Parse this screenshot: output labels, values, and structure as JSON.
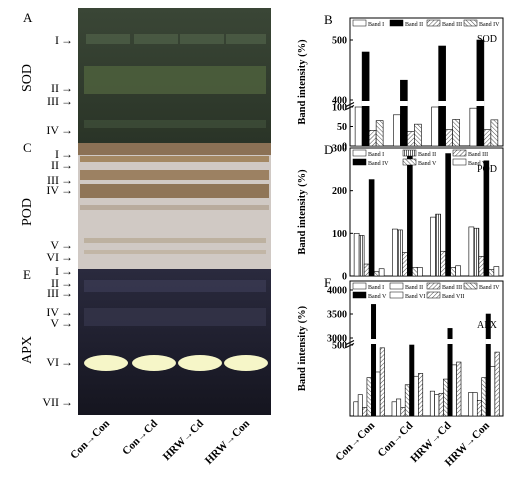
{
  "panels": {
    "A": {
      "letter": "A",
      "stain": "SOD",
      "bands": [
        "I",
        "II",
        "III",
        "IV"
      ]
    },
    "C": {
      "letter": "C",
      "stain": "POD",
      "bands": [
        "I",
        "II",
        "III",
        "IV",
        "V",
        "VI"
      ]
    },
    "E": {
      "letter": "E",
      "stain": "APX",
      "bands": [
        "I",
        "II",
        "III",
        "IV",
        "V",
        "VI",
        "VII"
      ]
    }
  },
  "categories": [
    "Con→Con",
    "Con→Cd",
    "HRW→Cd",
    "HRW→Con"
  ],
  "ylabel": "Band intensity (%)",
  "colors": {
    "bar_edge": "#000000",
    "gel_green": "#2f3a2e",
    "gel_pod": "#cfc7c2",
    "gel_apx": "#1c1c2c"
  },
  "chart_data": [
    {
      "type": "bar",
      "panel": "B",
      "title": "SOD",
      "ylabel": "Band intensity (%)",
      "categories": [
        "Con→Con",
        "Con→Cd",
        "HRW→Cd",
        "HRW→Con"
      ],
      "broken_axis": {
        "lower": [
          0,
          100
        ],
        "upper": [
          400,
          500
        ]
      },
      "yticks": [
        0,
        50,
        100,
        400,
        500
      ],
      "legend_columns": 4,
      "series": [
        {
          "name": "Band I",
          "fill": "white",
          "values": [
            100,
            80,
            100,
            97
          ]
        },
        {
          "name": "Band II",
          "fill": "black",
          "values": [
            480,
            433,
            490,
            502
          ]
        },
        {
          "name": "Band III",
          "fill": "hatch",
          "values": [
            40,
            37,
            42,
            42
          ]
        },
        {
          "name": "Band IV",
          "fill": "hatch2",
          "values": [
            65,
            56,
            68,
            67
          ]
        }
      ]
    },
    {
      "type": "bar",
      "panel": "D",
      "title": "POD",
      "ylabel": "Band intensity (%)",
      "categories": [
        "Con→Con",
        "Con→Cd",
        "HRW→Cd",
        "HRW→Con"
      ],
      "ylim": [
        0,
        300
      ],
      "yticks": [
        0,
        100,
        200,
        300
      ],
      "legend_columns": 3,
      "series": [
        {
          "name": "Band I",
          "fill": "white",
          "values": [
            100,
            110,
            138,
            115
          ]
        },
        {
          "name": "Band II",
          "fill": "vstripe",
          "values": [
            95,
            108,
            145,
            112
          ]
        },
        {
          "name": "Band III",
          "fill": "hatch",
          "values": [
            28,
            55,
            58,
            46
          ]
        },
        {
          "name": "Band IV",
          "fill": "black",
          "values": [
            226,
            290,
            287,
            270
          ]
        },
        {
          "name": "Band V",
          "fill": "hatch2",
          "values": [
            10,
            20,
            20,
            15
          ]
        },
        {
          "name": "Band VI",
          "fill": "white",
          "values": [
            17,
            20,
            24,
            22
          ]
        }
      ]
    },
    {
      "type": "bar",
      "panel": "F",
      "title": "APX",
      "ylabel": "Band intensity (%)",
      "categories": [
        "Con→Con",
        "Con→Cd",
        "HRW→Cd",
        "HRW→Con"
      ],
      "broken_axis": {
        "lower": [
          0,
          500
        ],
        "upper": [
          3000,
          4000
        ]
      },
      "yticks": [
        500,
        3000,
        3500,
        4000
      ],
      "legend_columns": 4,
      "series": [
        {
          "name": "Band I",
          "fill": "white",
          "values": [
            100,
            100,
            175,
            165
          ]
        },
        {
          "name": "Band II",
          "fill": "white",
          "values": [
            150,
            120,
            150,
            165
          ]
        },
        {
          "name": "Band III",
          "fill": "hatch",
          "values": [
            60,
            60,
            160,
            110
          ]
        },
        {
          "name": "Band IV",
          "fill": "hatch2",
          "values": [
            270,
            220,
            260,
            270
          ]
        },
        {
          "name": "Band V",
          "fill": "black",
          "values": [
            3700,
            2850,
            3200,
            3500
          ]
        },
        {
          "name": "Band VI",
          "fill": "white",
          "values": [
            310,
            280,
            360,
            350
          ]
        },
        {
          "name": "Band VII",
          "fill": "hatch",
          "values": [
            480,
            300,
            380,
            450
          ]
        }
      ]
    }
  ]
}
